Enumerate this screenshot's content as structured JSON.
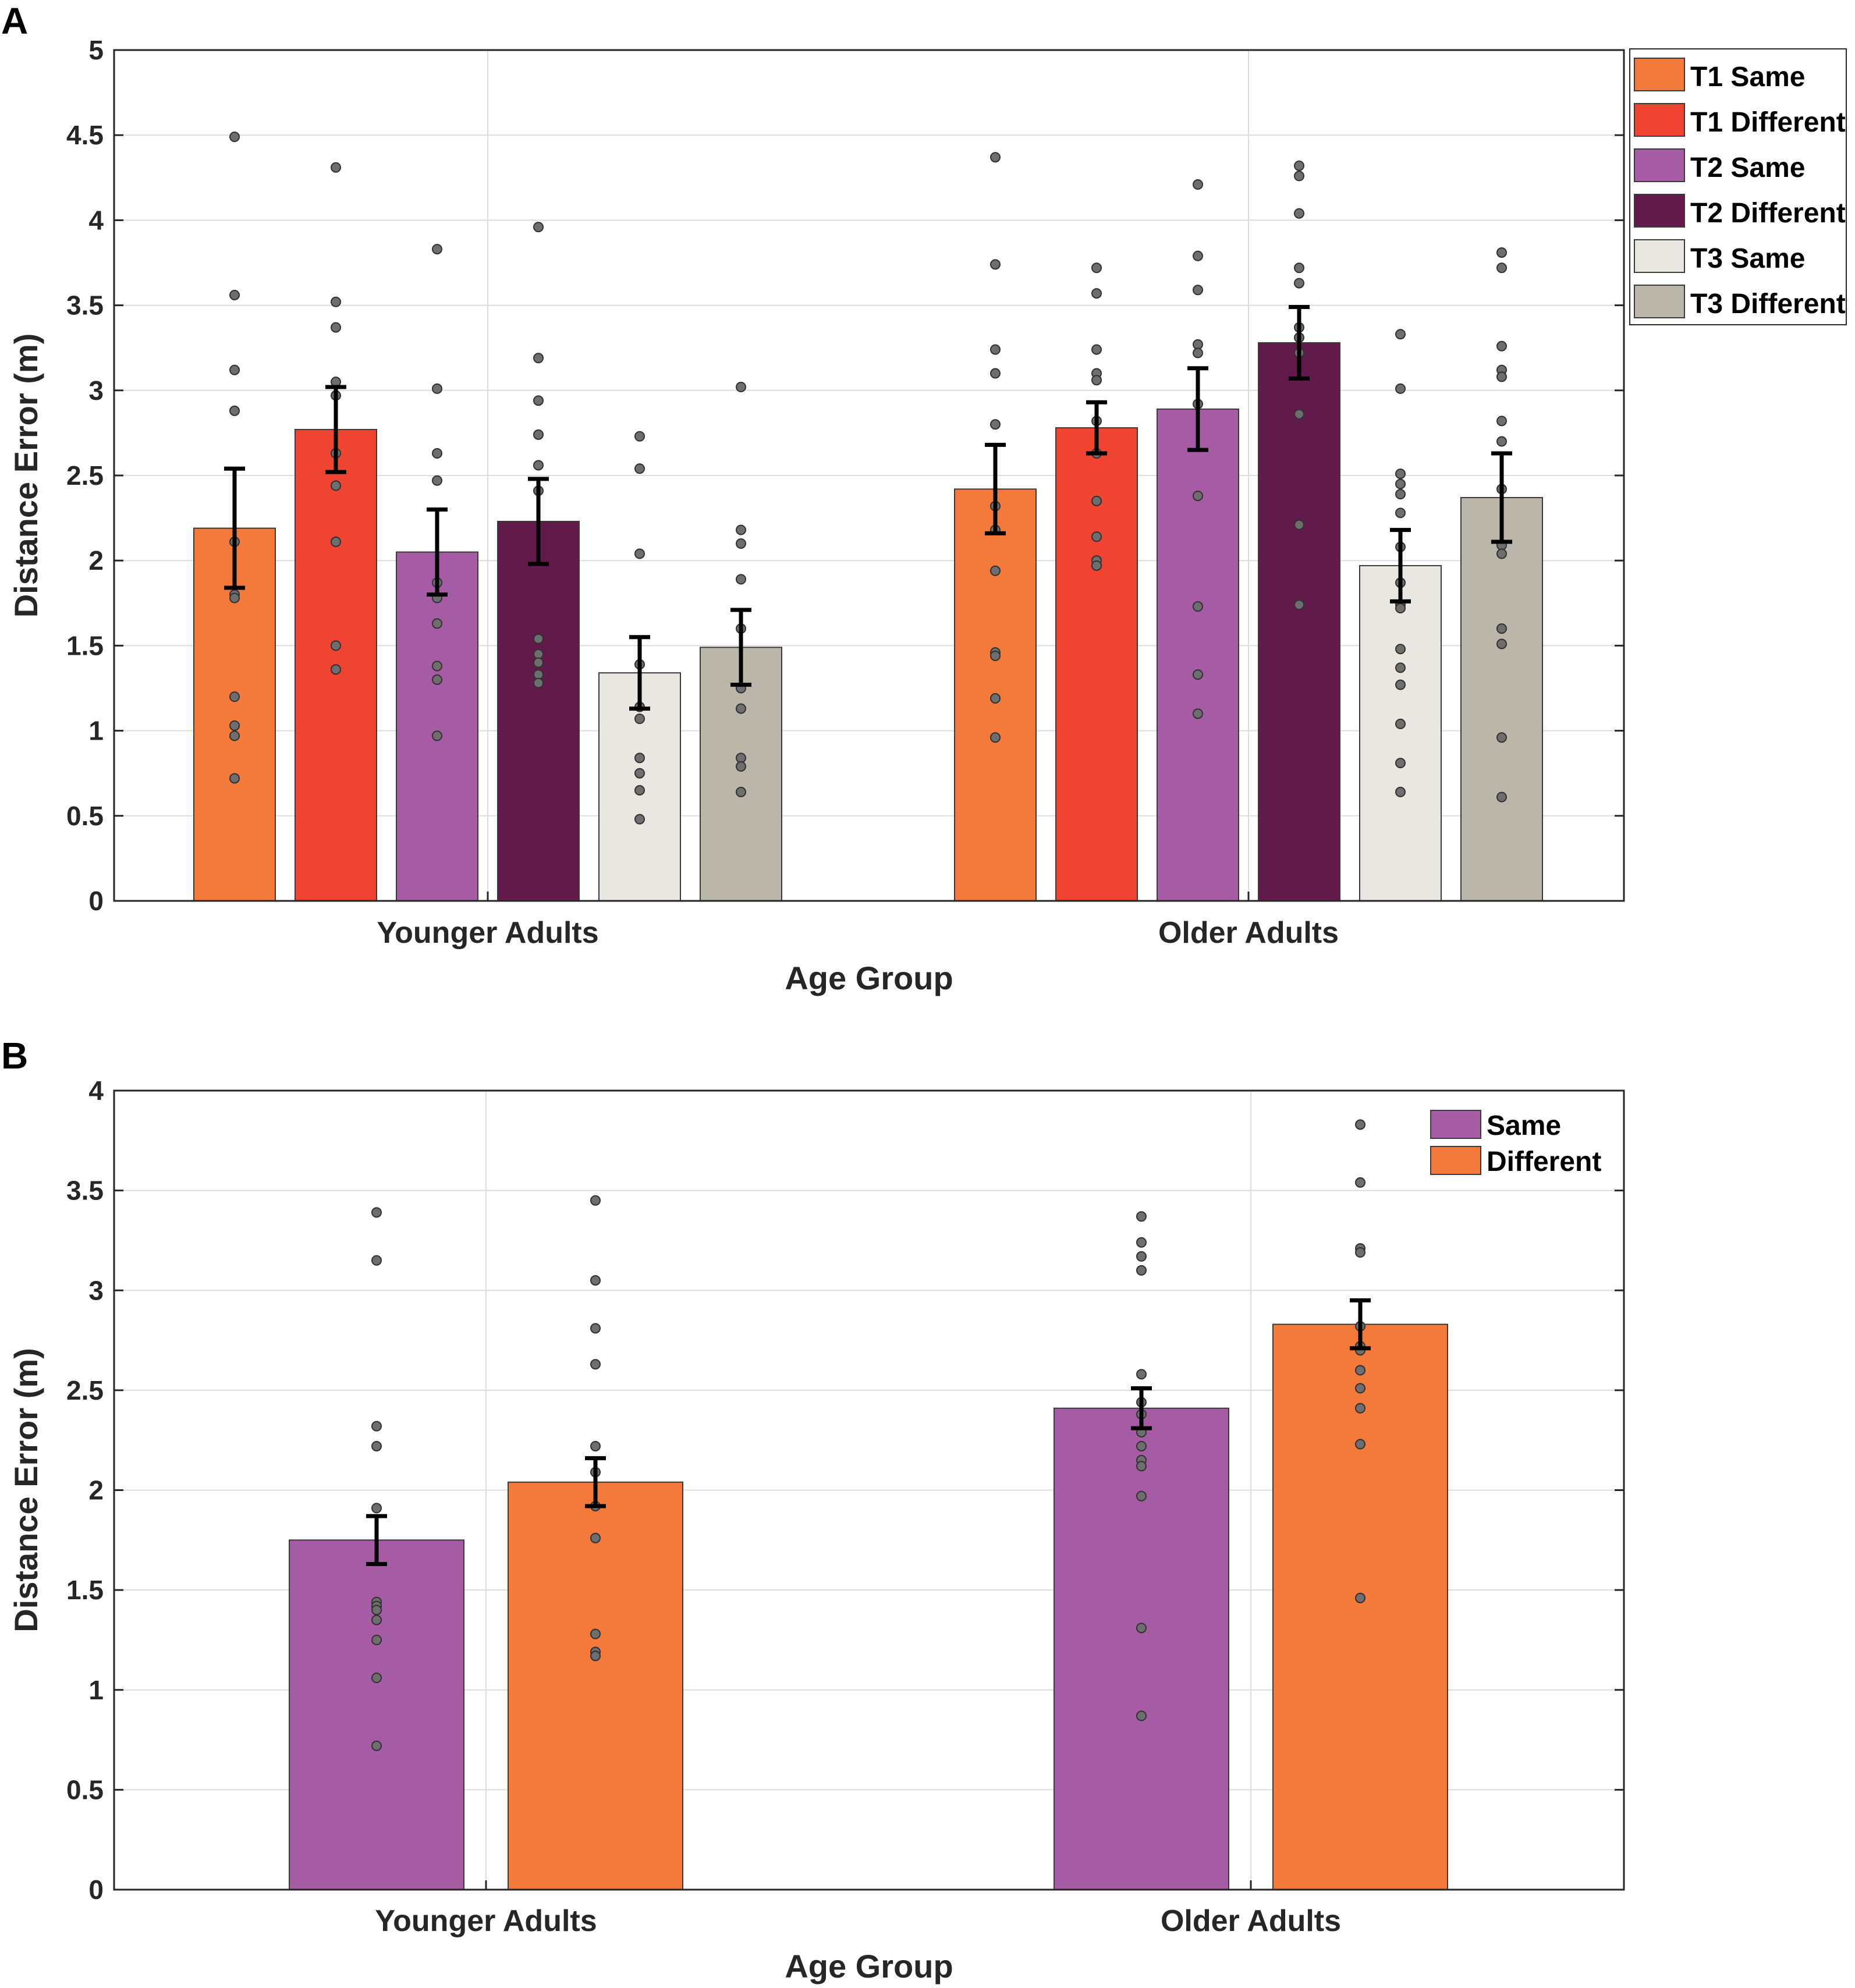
{
  "chart_data": [
    {
      "panel": "A",
      "type": "bar",
      "xlabel": "Age Group",
      "ylabel": "Distance Error (m)",
      "ylim": [
        0,
        5
      ],
      "yticks": [
        "0",
        "0.5",
        "1",
        "1.5",
        "2",
        "2.5",
        "3",
        "3.5",
        "4",
        "4.5",
        "5"
      ],
      "categories": [
        "Younger Adults",
        "Older Adults"
      ],
      "grid": true,
      "legend_position": "outside-right",
      "series": [
        {
          "name": "T1 Same",
          "color": "#F47A3C",
          "values": [
            2.19,
            2.42
          ],
          "errors": [
            0.35,
            0.26
          ],
          "points": [
            [
              4.49,
              3.56,
              3.12,
              2.88,
              2.11,
              1.8,
              1.78,
              1.2,
              1.03,
              0.97,
              0.72
            ],
            [
              4.37,
              3.74,
              3.24,
              3.1,
              2.8,
              2.32,
              2.18,
              1.94,
              1.46,
              1.44,
              1.19,
              0.96
            ]
          ]
        },
        {
          "name": "T1 Different",
          "color": "#EE4431",
          "values": [
            2.77,
            2.78
          ],
          "errors": [
            0.25,
            0.15
          ],
          "points": [
            [
              4.31,
              3.52,
              3.37,
              3.05,
              2.97,
              2.63,
              2.44,
              2.11,
              1.5,
              1.36
            ],
            [
              3.72,
              3.57,
              3.24,
              3.1,
              3.06,
              2.82,
              2.63,
              2.35,
              2.14,
              2.0,
              1.97
            ]
          ]
        },
        {
          "name": "T2 Same",
          "color": "#A65CA4",
          "values": [
            2.05,
            2.89
          ],
          "errors": [
            0.25,
            0.24
          ],
          "points": [
            [
              3.83,
              3.01,
              2.63,
              2.47,
              1.87,
              1.78,
              1.63,
              1.38,
              1.3,
              0.97
            ],
            [
              4.21,
              3.79,
              3.59,
              3.27,
              3.22,
              2.92,
              2.38,
              1.73,
              1.33,
              1.1
            ]
          ]
        },
        {
          "name": "T2 Different",
          "color": "#621A4A",
          "values": [
            2.23,
            3.28
          ],
          "errors": [
            0.25,
            0.21
          ],
          "points": [
            [
              3.96,
              3.19,
              2.94,
              2.74,
              2.56,
              2.41,
              1.54,
              1.45,
              1.4,
              1.33,
              1.28
            ],
            [
              4.32,
              4.26,
              4.04,
              3.72,
              3.63,
              3.37,
              3.31,
              3.22,
              2.86,
              2.21,
              1.74
            ]
          ]
        },
        {
          "name": "T3 Same",
          "color": "#E9E7E1",
          "values": [
            1.34,
            1.97
          ],
          "errors": [
            0.21,
            0.21
          ],
          "points": [
            [
              2.73,
              2.54,
              2.04,
              1.39,
              1.14,
              1.07,
              0.84,
              0.75,
              0.65,
              0.48
            ],
            [
              3.33,
              3.01,
              2.51,
              2.45,
              2.39,
              2.28,
              2.08,
              1.87,
              1.74,
              1.72,
              1.48,
              1.37,
              1.27,
              1.04,
              0.81,
              0.64
            ]
          ]
        },
        {
          "name": "T3 Different",
          "color": "#BAB7AA",
          "values": [
            1.49,
            2.37
          ],
          "errors": [
            0.22,
            0.26
          ],
          "points": [
            [
              3.02,
              2.18,
              2.1,
              1.89,
              1.6,
              1.25,
              1.13,
              0.84,
              0.79,
              0.64
            ],
            [
              3.81,
              3.72,
              3.26,
              3.12,
              3.08,
              2.82,
              2.7,
              2.42,
              2.09,
              2.04,
              1.6,
              1.51,
              0.96,
              0.61
            ]
          ]
        }
      ]
    },
    {
      "panel": "B",
      "type": "bar",
      "xlabel": "Age Group",
      "ylabel": "Distance Error (m)",
      "ylim": [
        0,
        4
      ],
      "yticks": [
        "0",
        "0.5",
        "1",
        "1.5",
        "2",
        "2.5",
        "3",
        "3.5",
        "4"
      ],
      "categories": [
        "Younger Adults",
        "Older Adults"
      ],
      "grid": true,
      "legend_position": "top-right",
      "series": [
        {
          "name": "Same",
          "color": "#A65CA4",
          "values": [
            1.75,
            2.41
          ],
          "errors": [
            0.12,
            0.1
          ],
          "points": [
            [
              3.39,
              3.15,
              2.32,
              2.22,
              1.91,
              1.44,
              1.42,
              1.4,
              1.35,
              1.25,
              1.06,
              0.72
            ],
            [
              3.37,
              3.24,
              3.17,
              3.1,
              2.58,
              2.44,
              2.38,
              2.29,
              2.22,
              2.15,
              2.12,
              1.97,
              1.31,
              0.87
            ]
          ]
        },
        {
          "name": "Different",
          "color": "#F47A3C",
          "values": [
            2.04,
            2.83
          ],
          "errors": [
            0.12,
            0.12
          ],
          "points": [
            [
              3.45,
              3.05,
              2.81,
              2.63,
              2.22,
              2.09,
              1.92,
              1.76,
              1.28,
              1.19,
              1.17
            ],
            [
              3.83,
              3.54,
              3.21,
              3.19,
              2.82,
              2.72,
              2.7,
              2.6,
              2.51,
              2.41,
              2.23,
              1.46
            ]
          ]
        }
      ]
    }
  ]
}
